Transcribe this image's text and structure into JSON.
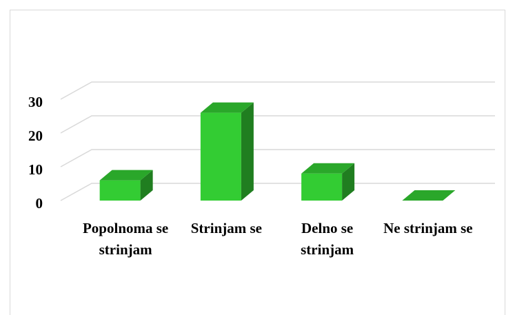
{
  "chart_data": {
    "type": "bar3d",
    "categories": [
      "Popolnoma se strinjam",
      "Strinjam se",
      "Delno se strinjam",
      "Ne strinjam se"
    ],
    "values": [
      6,
      26,
      8,
      0
    ],
    "color": "#33cc33",
    "ylim": [
      0,
      30
    ],
    "yticks": [
      0,
      10,
      20,
      30
    ],
    "grid": true
  }
}
